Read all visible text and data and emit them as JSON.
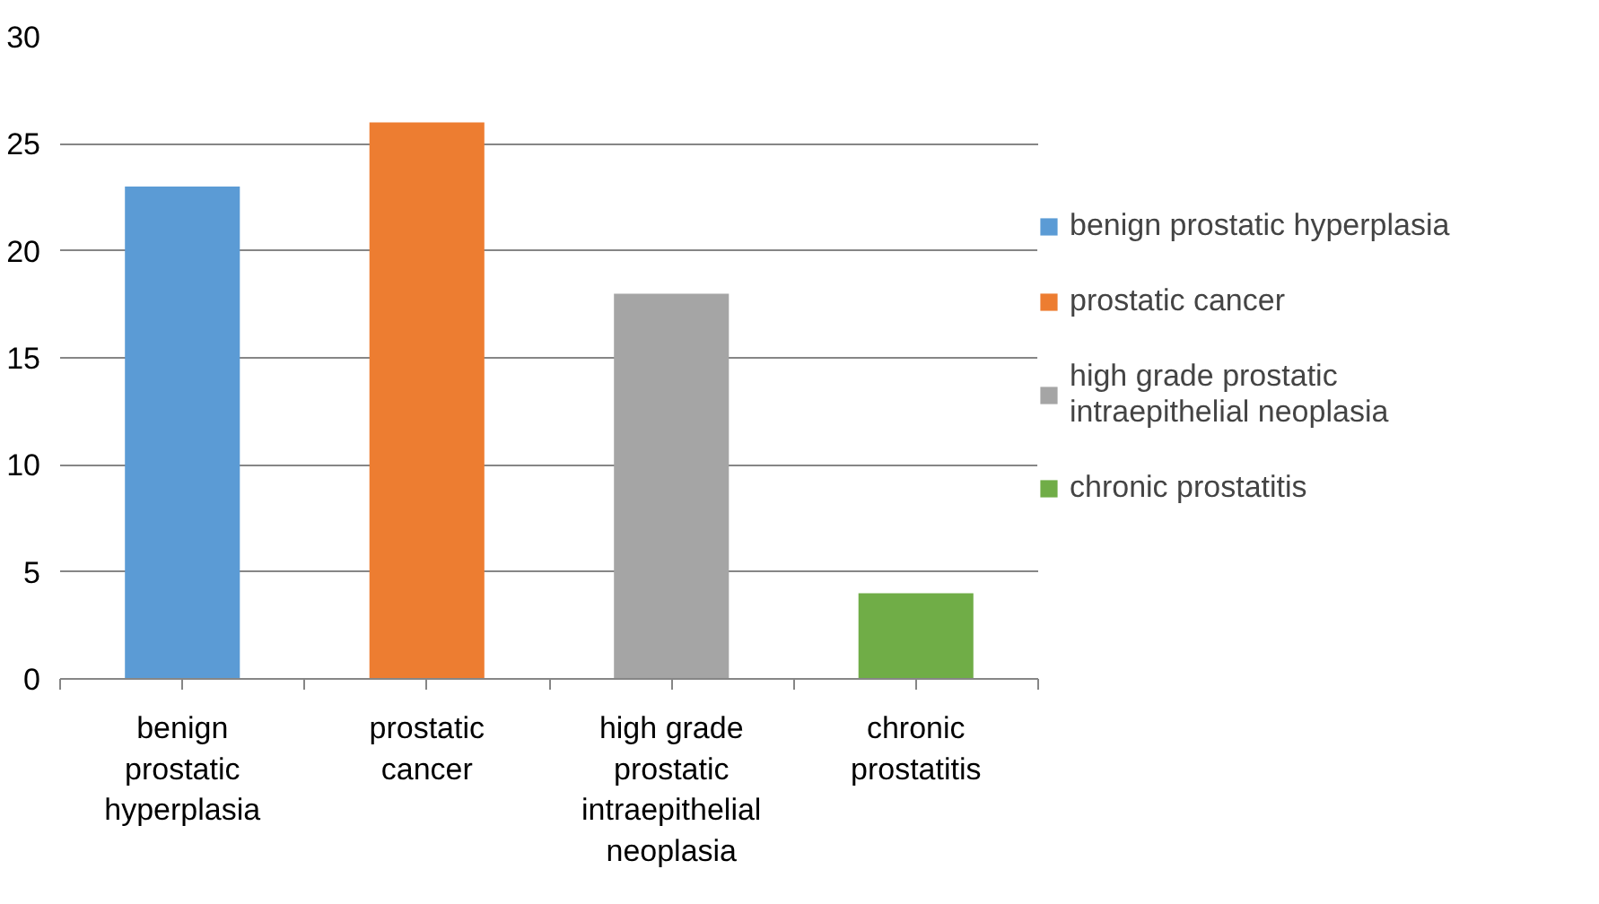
{
  "chart_data": {
    "type": "bar",
    "categories": [
      "benign prostatic hyperplasia",
      "prostatic cancer",
      "high grade prostatic intraepithelial neoplasia",
      "chronic prostatitis"
    ],
    "series": [
      {
        "name": "benign prostatic hyperplasia",
        "color": "#5b9bd5",
        "values": [
          23,
          null,
          null,
          null
        ]
      },
      {
        "name": "prostatic cancer",
        "color": "#ed7d31",
        "values": [
          null,
          26,
          null,
          null
        ]
      },
      {
        "name": "high grade prostatic intraepithelial neoplasia",
        "color": "#a5a5a5",
        "values": [
          null,
          null,
          18,
          null
        ]
      },
      {
        "name": "chronic prostatitis",
        "color": "#70ad47",
        "values": [
          null,
          null,
          null,
          4
        ]
      }
    ],
    "ylim": [
      0,
      30
    ],
    "yticks": [
      0,
      5,
      10,
      15,
      20,
      25,
      30
    ],
    "grid": "y",
    "legend": "right"
  }
}
